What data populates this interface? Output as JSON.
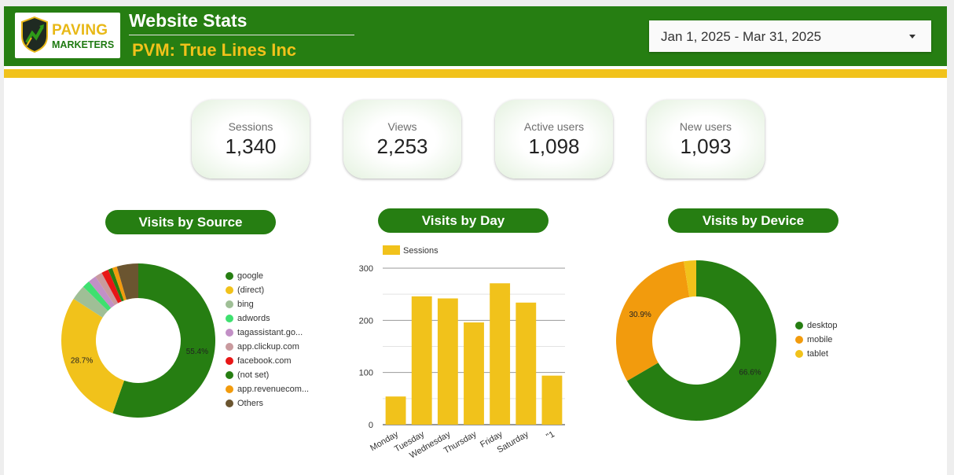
{
  "header": {
    "logo_line1": "PAVING",
    "logo_line2": "MARKETERS",
    "title": "Website Stats",
    "subtitle": "PVM: True Lines Inc",
    "date_range": "Jan 1, 2025 - Mar 31, 2025"
  },
  "colors": {
    "brand_green": "#267e12",
    "brand_gold": "#f1c21b"
  },
  "kpis": [
    {
      "label": "Sessions",
      "value": "1,340"
    },
    {
      "label": "Views",
      "value": "2,253"
    },
    {
      "label": "Active users",
      "value": "1,098"
    },
    {
      "label": "New users",
      "value": "1,093"
    }
  ],
  "chart_data": [
    {
      "type": "pie",
      "donut": true,
      "title": "Visits by Source",
      "legend_position": "right",
      "slices": [
        {
          "label": "google",
          "value": 55.4,
          "color": "#267e12",
          "show_label": "55.4%"
        },
        {
          "label": "(direct)",
          "value": 28.7,
          "color": "#f1c21b",
          "show_label": "28.7%"
        },
        {
          "label": "bing",
          "value": 3.2,
          "color": "#9fbf96"
        },
        {
          "label": "adwords",
          "value": 1.6,
          "color": "#3ee06f"
        },
        {
          "label": "tagassistant.go...",
          "value": 1.7,
          "color": "#c290c6"
        },
        {
          "label": "app.clickup.com",
          "value": 1.5,
          "color": "#c99a9e"
        },
        {
          "label": "facebook.com",
          "value": 1.5,
          "color": "#e81616"
        },
        {
          "label": "(not set)",
          "value": 0.9,
          "color": "#267e12"
        },
        {
          "label": "app.revenuecom...",
          "value": 1.0,
          "color": "#f29b0d"
        },
        {
          "label": "Others",
          "value": 4.5,
          "color": "#6b5530"
        }
      ]
    },
    {
      "type": "bar",
      "title": "Visits by Day",
      "legend_position": "top-left",
      "categories": [
        "Monday",
        "Tuesday",
        "Wednesday",
        "Thursday",
        "Friday",
        "Saturday",
        "\"1"
      ],
      "series": [
        {
          "name": "Sessions",
          "values": [
            54,
            246,
            242,
            196,
            271,
            234,
            94
          ],
          "color": "#f1c21b"
        }
      ],
      "ylim": [
        0,
        300
      ],
      "yticks": [
        0,
        100,
        200,
        300
      ],
      "grid": true
    },
    {
      "type": "pie",
      "donut": true,
      "title": "Visits by Device",
      "legend_position": "right",
      "slices": [
        {
          "label": "desktop",
          "value": 66.6,
          "color": "#267e12",
          "show_label": "66.6%"
        },
        {
          "label": "mobile",
          "value": 30.9,
          "color": "#f29b0d",
          "show_label": "30.9%"
        },
        {
          "label": "tablet",
          "value": 2.5,
          "color": "#f1c21b"
        }
      ]
    }
  ]
}
